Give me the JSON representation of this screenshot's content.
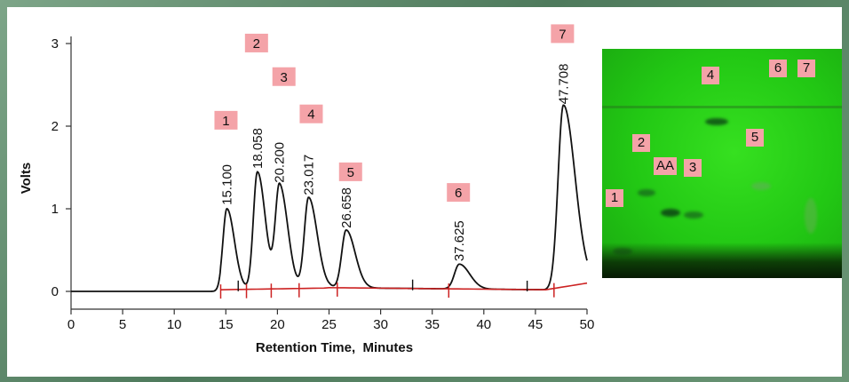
{
  "chart_data": {
    "type": "line",
    "xlabel": "Retention Time,  Minutes",
    "ylabel": "Volts",
    "xlim": [
      0,
      50
    ],
    "ylim": [
      0,
      3
    ],
    "xticks": [
      "0",
      "5",
      "10",
      "15",
      "20",
      "25",
      "30",
      "35",
      "40",
      "45",
      "50"
    ],
    "yticks": [
      "0",
      "1",
      "2",
      "3"
    ],
    "grid": false,
    "peaks": [
      {
        "label": "1",
        "time": "15.100",
        "x": 15.1,
        "height": 0.98
      },
      {
        "label": "2",
        "time": "18.058",
        "x": 18.058,
        "height": 1.42
      },
      {
        "label": "3",
        "time": "20.200",
        "x": 20.2,
        "height": 1.25
      },
      {
        "label": "4",
        "time": "23.017",
        "x": 23.017,
        "height": 1.1
      },
      {
        "label": "5",
        "time": "26.658",
        "x": 26.658,
        "height": 0.7
      },
      {
        "label": "6",
        "time": "37.625",
        "x": 37.625,
        "height": 0.3
      },
      {
        "label": "7",
        "time": "47.708",
        "x": 47.708,
        "height": 2.2
      }
    ],
    "baseline_color": "#cc2222",
    "trace_color": "#111111",
    "label_box_color": "#f4a3a8"
  },
  "tlc_plate": {
    "labels": [
      "1",
      "2",
      "AA",
      "3",
      "4",
      "5",
      "6",
      "7"
    ],
    "background_color": "#22c814"
  }
}
